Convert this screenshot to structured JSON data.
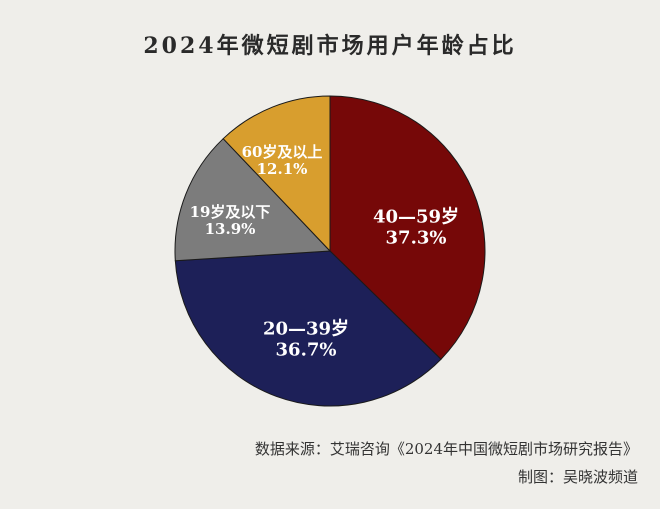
{
  "chart_data": {
    "type": "pie",
    "title": "2024年微短剧市场用户年龄占比",
    "slices": [
      {
        "label": "40—59岁",
        "value": 37.3,
        "display": "37.3%",
        "color": "#760808"
      },
      {
        "label": "20—39岁",
        "value": 36.7,
        "display": "36.7%",
        "color": "#1d2058"
      },
      {
        "label": "19岁及以下",
        "value": 13.9,
        "display": "13.9%",
        "color": "#7c7c7c"
      },
      {
        "label": "60岁及以上",
        "value": 12.1,
        "display": "12.1%",
        "color": "#d89e2e"
      }
    ],
    "start_angle": "12 o'clock",
    "direction": "clockwise"
  },
  "source": "数据来源：艾瑞咨询《2024年中国微短剧市场研究报告》",
  "credit": "制图：吴晓波频道"
}
